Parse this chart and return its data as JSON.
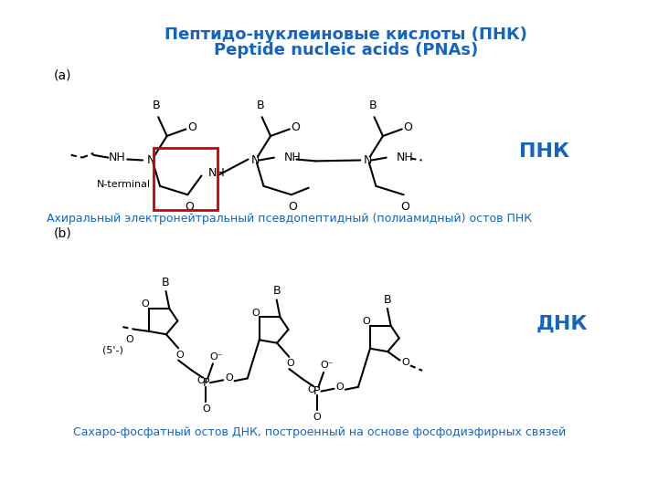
{
  "title_line1": "Пептидо-нуклеиновые кислоты (ПНК)",
  "title_line2": "Peptide nucleic acids (PNAs)",
  "title_color": "#1565C0",
  "label_a": "(a)",
  "label_b": "(b)",
  "label_pnk": "ПНК",
  "label_dnk": "ДНК",
  "label_nterminal": "N-terminal",
  "label_5prime": "(5'-)",
  "caption_a": "Ахиральный электронейтральный псевдопептидный (полиамидный) остов ПНК",
  "caption_b": "Сахаро-фосфатный остов ДНК, построенный на основе фосфодиэфирных связей",
  "caption_color": "#1565C0",
  "bg_color": "#FFFFFF",
  "line_color": "#000000",
  "highlight_box_color": "#CC0000",
  "label_color_ab": "#000000",
  "label_color_pnk_dnk": "#1565C0"
}
